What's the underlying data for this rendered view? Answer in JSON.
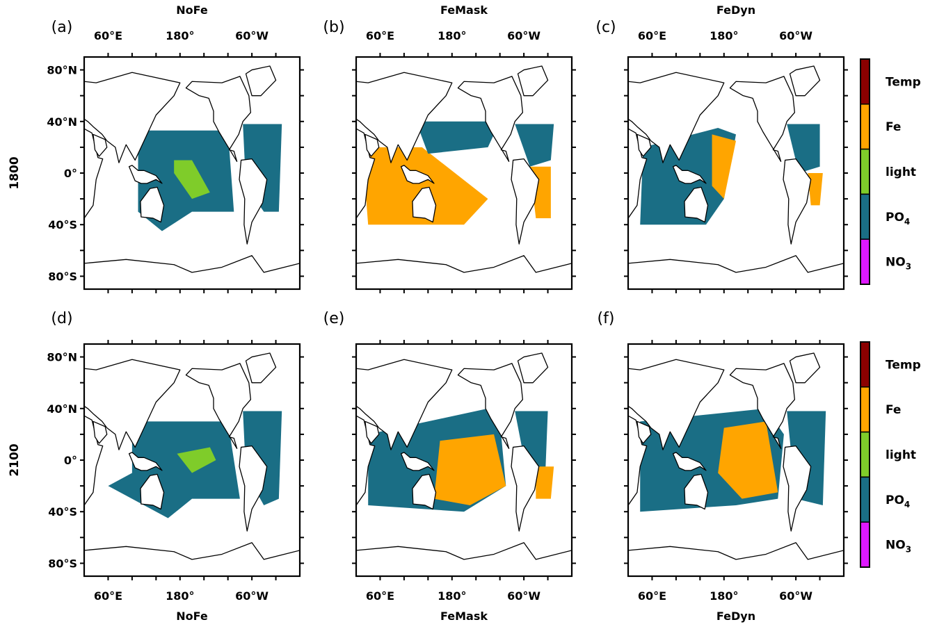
{
  "figure": {
    "colorbar": [
      {
        "label": "Temp",
        "sub": "",
        "color": "#8b0000"
      },
      {
        "label": "Fe",
        "sub": "",
        "color": "#ffa500"
      },
      {
        "label": "light",
        "sub": "",
        "color": "#7fcc2a"
      },
      {
        "label": "PO",
        "sub": "4",
        "color": "#1a6e85"
      },
      {
        "label": "NO",
        "sub": "3",
        "color": "#dd19ff"
      }
    ],
    "lon_ticks": [
      "60°E",
      "180°",
      "60°W"
    ],
    "lat_ticks": [
      "80°N",
      "40°N",
      "0°",
      "40°S",
      "80°S"
    ],
    "rows": [
      {
        "label": "1800"
      },
      {
        "label": "2100"
      }
    ],
    "panels": [
      {
        "id": "a",
        "label": "(a)",
        "scenario": "NoFe",
        "title": "NoFe",
        "title_position": "top",
        "regions": [
          {
            "factor": "PO4",
            "points": [
              [
                110,
                33
              ],
              [
                260,
                33
              ],
              [
                270,
                -30
              ],
              [
                200,
                -30
              ],
              [
                150,
                -45
              ],
              [
                110,
                -30
              ]
            ]
          },
          {
            "factor": "light",
            "points": [
              [
                170,
                10
              ],
              [
                200,
                10
              ],
              [
                230,
                -15
              ],
              [
                200,
                -20
              ],
              [
                170,
                0
              ]
            ]
          },
          {
            "factor": "PO4",
            "points": [
              [
                285,
                38
              ],
              [
                350,
                38
              ],
              [
                345,
                -30
              ],
              [
                320,
                -30
              ],
              [
                290,
                -10
              ]
            ]
          }
        ]
      },
      {
        "id": "b",
        "label": "(b)",
        "scenario": "FeMask",
        "title": "FeMask",
        "title_position": "top",
        "regions": [
          {
            "factor": "Fe",
            "points": [
              [
                40,
                20
              ],
              [
                130,
                20
              ],
              [
                240,
                -20
              ],
              [
                200,
                -40
              ],
              [
                40,
                -40
              ],
              [
                35,
                -10
              ]
            ]
          },
          {
            "factor": "PO4",
            "points": [
              [
                120,
                40
              ],
              [
                260,
                40
              ],
              [
                240,
                20
              ],
              [
                140,
                15
              ]
            ]
          },
          {
            "factor": "PO4",
            "points": [
              [
                285,
                38
              ],
              [
                350,
                38
              ],
              [
                345,
                10
              ],
              [
                310,
                5
              ]
            ]
          },
          {
            "factor": "Fe",
            "points": [
              [
                310,
                5
              ],
              [
                345,
                5
              ],
              [
                345,
                -35
              ],
              [
                320,
                -35
              ]
            ]
          }
        ]
      },
      {
        "id": "c",
        "label": "(c)",
        "scenario": "FeDyn",
        "title": "FeDyn",
        "title_position": "top",
        "regions": [
          {
            "factor": "PO4",
            "points": [
              [
                45,
                20
              ],
              [
                170,
                35
              ],
              [
                200,
                30
              ],
              [
                180,
                -20
              ],
              [
                150,
                -40
              ],
              [
                40,
                -40
              ]
            ]
          },
          {
            "factor": "Fe",
            "points": [
              [
                160,
                30
              ],
              [
                200,
                25
              ],
              [
                180,
                -20
              ],
              [
                160,
                -10
              ]
            ]
          },
          {
            "factor": "PO4",
            "points": [
              [
                285,
                38
              ],
              [
                340,
                38
              ],
              [
                340,
                5
              ],
              [
                305,
                0
              ]
            ]
          },
          {
            "factor": "Fe",
            "points": [
              [
                320,
                0
              ],
              [
                345,
                0
              ],
              [
                340,
                -25
              ],
              [
                325,
                -25
              ]
            ]
          }
        ]
      },
      {
        "id": "d",
        "label": "(d)",
        "scenario": "NoFe",
        "title": "NoFe",
        "title_position": "bottom",
        "regions": [
          {
            "factor": "PO4",
            "points": [
              [
                100,
                30
              ],
              [
                260,
                30
              ],
              [
                280,
                -30
              ],
              [
                200,
                -30
              ],
              [
                160,
                -45
              ],
              [
                60,
                -20
              ],
              [
                100,
                -10
              ]
            ]
          },
          {
            "factor": "light",
            "points": [
              [
                175,
                5
              ],
              [
                230,
                10
              ],
              [
                240,
                0
              ],
              [
                200,
                -10
              ]
            ]
          },
          {
            "factor": "PO4",
            "points": [
              [
                285,
                38
              ],
              [
                350,
                38
              ],
              [
                345,
                -30
              ],
              [
                320,
                -35
              ],
              [
                290,
                -10
              ]
            ]
          }
        ]
      },
      {
        "id": "e",
        "label": "(e)",
        "scenario": "FeMask",
        "title": "FeMask",
        "title_position": "bottom",
        "regions": [
          {
            "factor": "PO4",
            "points": [
              [
                40,
                20
              ],
              [
                240,
                40
              ],
              [
                260,
                30
              ],
              [
                270,
                -20
              ],
              [
                200,
                -40
              ],
              [
                40,
                -35
              ]
            ]
          },
          {
            "factor": "Fe",
            "points": [
              [
                160,
                15
              ],
              [
                250,
                20
              ],
              [
                270,
                -20
              ],
              [
                210,
                -35
              ],
              [
                150,
                -30
              ]
            ]
          },
          {
            "factor": "PO4",
            "points": [
              [
                285,
                38
              ],
              [
                340,
                38
              ],
              [
                335,
                -20
              ],
              [
                305,
                -10
              ]
            ]
          },
          {
            "factor": "Fe",
            "points": [
              [
                320,
                -5
              ],
              [
                350,
                -5
              ],
              [
                345,
                -30
              ],
              [
                320,
                -30
              ]
            ]
          }
        ]
      },
      {
        "id": "f",
        "label": "(f)",
        "scenario": "FeDyn",
        "title": "FeDyn",
        "title_position": "bottom",
        "regions": [
          {
            "factor": "PO4",
            "points": [
              [
                40,
                30
              ],
              [
                250,
                40
              ],
              [
                280,
                20
              ],
              [
                270,
                -30
              ],
              [
                200,
                -35
              ],
              [
                40,
                -40
              ]
            ]
          },
          {
            "factor": "Fe",
            "points": [
              [
                180,
                25
              ],
              [
                250,
                30
              ],
              [
                270,
                -25
              ],
              [
                210,
                -30
              ],
              [
                170,
                -10
              ]
            ]
          },
          {
            "factor": "PO4",
            "points": [
              [
                285,
                38
              ],
              [
                350,
                38
              ],
              [
                345,
                -35
              ],
              [
                300,
                -30
              ]
            ]
          }
        ]
      }
    ]
  }
}
